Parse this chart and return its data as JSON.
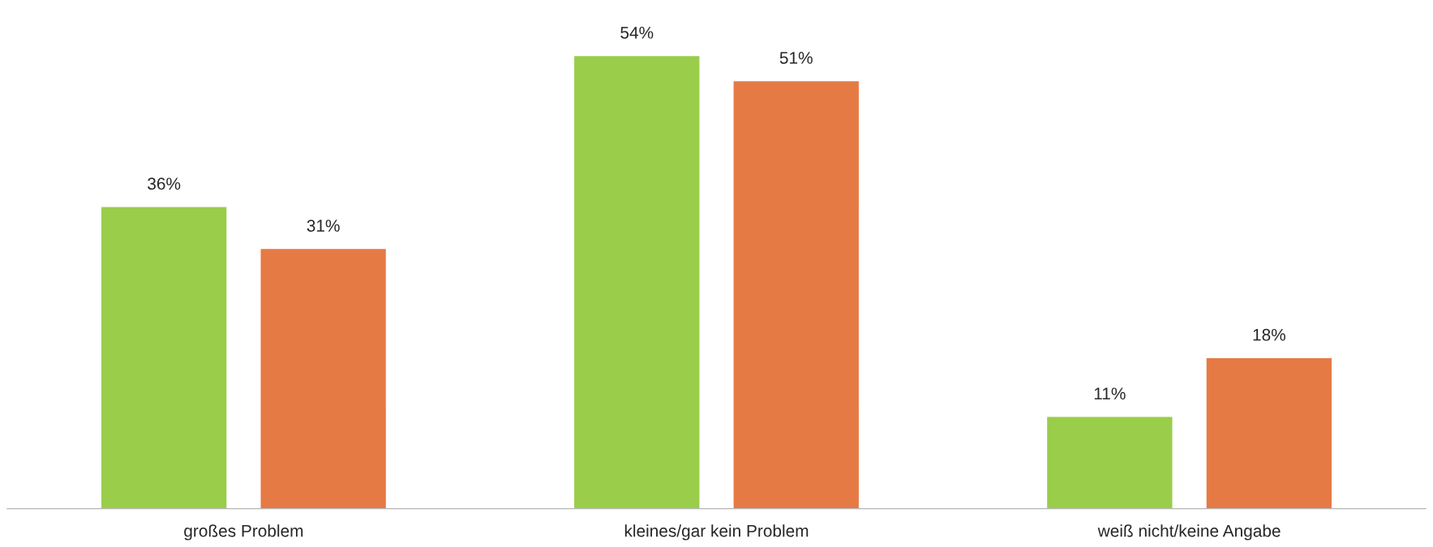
{
  "chart_data": {
    "type": "bar",
    "categories": [
      "großes Problem",
      "kleines/gar kein Problem",
      "weiß nicht/keine Angabe"
    ],
    "series": [
      {
        "color": "#9acd4a",
        "values": [
          36,
          54,
          11
        ],
        "value_labels": [
          "36%",
          "54%",
          "11%"
        ]
      },
      {
        "color": "#e67a45",
        "values": [
          31,
          51,
          18
        ],
        "value_labels": [
          "31%",
          "51%",
          "18%"
        ]
      }
    ],
    "grid": false,
    "legend": false
  }
}
